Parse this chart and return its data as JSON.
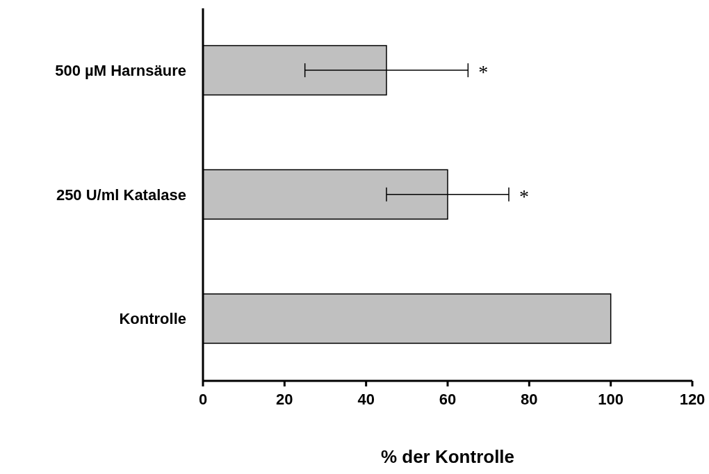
{
  "chart_data": {
    "type": "bar",
    "orientation": "horizontal",
    "xlabel": "% der Kontrolle",
    "categories": [
      "500 µM Harnsäure",
      "250 U/ml Katalase",
      "Kontrolle"
    ],
    "values": [
      45,
      60,
      100
    ],
    "color": "#c0c0c0",
    "errors": [
      20,
      15,
      null
    ],
    "xlim": [
      0,
      120
    ],
    "xticks": [
      0,
      20,
      40,
      60,
      80,
      100,
      120
    ],
    "grid": false,
    "annotations": [
      "*",
      "*"
    ]
  }
}
